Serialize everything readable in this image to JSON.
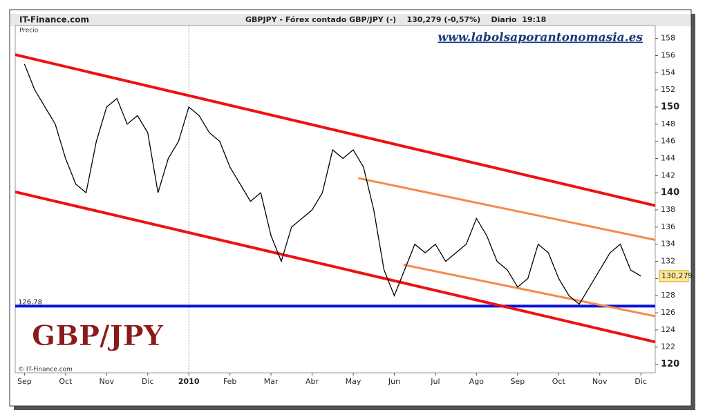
{
  "chart_data": {
    "type": "line",
    "source": "IT-Finance.com",
    "title": "GBPJPY - Fórex contado GBP/JPY (-)    130,279 (-0,57%)    Diario  19:18",
    "y_label": "Precio",
    "watermark": "www.labolsaporantonomasia.es",
    "annotation": "GBP/JPY",
    "copyright": "© IT-Finance.com",
    "categories": [
      "Sep",
      null,
      null,
      null,
      "Oct",
      null,
      null,
      null,
      "Nov",
      null,
      null,
      null,
      "Dic",
      null,
      null,
      null,
      "2010",
      null,
      null,
      null,
      "Feb",
      null,
      null,
      null,
      "Mar",
      null,
      null,
      null,
      "Abr",
      null,
      null,
      null,
      "May",
      null,
      null,
      null,
      "Jun",
      null,
      null,
      null,
      "Jul",
      null,
      null,
      null,
      "Ago",
      null,
      null,
      null,
      "Sep",
      null,
      null,
      null,
      "Oct",
      null,
      null,
      null,
      "Nov",
      null,
      null,
      null,
      "Dic"
    ],
    "series": [
      {
        "name": "GBPJPY",
        "color": "#000000",
        "values": [
          155,
          152,
          150,
          148,
          144,
          141,
          140,
          146,
          150,
          151,
          148,
          149,
          147,
          140,
          144,
          146,
          150,
          149,
          147,
          146,
          143,
          141,
          139,
          140,
          135,
          132,
          136,
          137,
          138,
          140,
          145,
          144,
          145,
          143,
          138,
          131,
          128,
          131,
          134,
          133,
          134,
          132,
          133,
          134,
          137,
          135,
          132,
          131,
          129,
          130,
          134,
          133,
          130,
          128,
          127,
          129,
          131,
          133,
          134,
          131,
          130.279
        ],
        "value_labels": [
          null,
          null,
          null,
          null,
          null,
          null,
          null,
          null,
          null,
          null,
          null,
          null,
          null,
          null,
          null,
          null,
          null,
          null,
          null,
          null,
          null,
          null,
          null,
          null,
          null,
          null,
          null,
          null,
          null,
          null,
          null,
          null,
          null,
          null,
          null,
          null,
          null,
          null,
          null,
          null,
          null,
          null,
          null,
          null,
          null,
          null,
          null,
          null,
          null,
          null,
          null,
          null,
          null,
          null,
          null,
          null,
          null,
          null,
          null,
          null,
          "130,279"
        ]
      }
    ],
    "xlim": [
      -0.9,
      61.4
    ],
    "ylim": [
      119,
      159.5
    ],
    "yticks": [
      120,
      122,
      124,
      126,
      128,
      130,
      132,
      134,
      136,
      138,
      140,
      142,
      144,
      146,
      148,
      150,
      152,
      154,
      156,
      158
    ],
    "bold_yticks": [
      120,
      130,
      140,
      150
    ],
    "trend_lines": [
      {
        "color": "#ee1111",
        "x": [
          -0.9,
          61.4
        ],
        "y": [
          156.1,
          138.5
        ]
      },
      {
        "color": "#ee1111",
        "x": [
          -0.9,
          61.4
        ],
        "y": [
          140.1,
          122.6
        ]
      },
      {
        "color": "#f58a4a",
        "x": [
          32.5,
          61.4
        ],
        "y": [
          141.7,
          134.5
        ]
      },
      {
        "color": "#f58a4a",
        "x": [
          36.9,
          61.4
        ],
        "y": [
          131.6,
          125.6
        ]
      }
    ],
    "support": {
      "value": 126.78,
      "label": "126.78",
      "color": "#0a14d8"
    }
  }
}
